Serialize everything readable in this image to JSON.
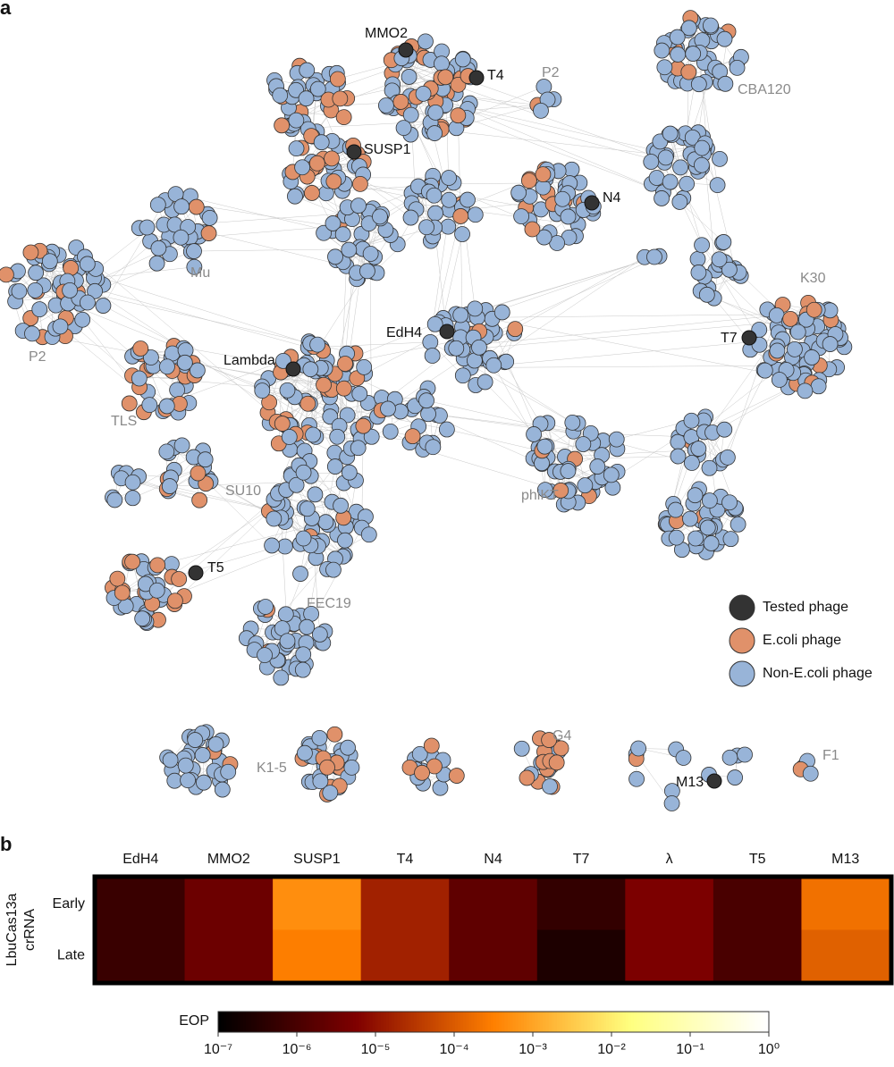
{
  "panel_labels": [
    "a",
    "b"
  ],
  "network": {
    "labels": [
      "MMO2",
      "T4",
      "P2",
      "SUSP1",
      "N4",
      "CBA120",
      "Mu",
      "K30",
      "P2",
      "EdH4",
      "T7",
      "Lambda",
      "TLS",
      "SU10",
      "phiKT",
      "T5",
      "FEC19",
      "K1-5",
      "G4",
      "M13",
      "F1"
    ],
    "legend": [
      {
        "label": "Tested phage",
        "color": "#333333"
      },
      {
        "label": "E.coli phage",
        "color": "#e0916a"
      },
      {
        "label": "Non-E.coli phage",
        "color": "#98b4d8"
      }
    ]
  },
  "chart_data": {
    "type": "heatmap",
    "x": [
      "EdH4",
      "MMO2",
      "SUSP1",
      "T4",
      "N4",
      "T7",
      "λ",
      "T5",
      "M13"
    ],
    "y": [
      "Early",
      "Late"
    ],
    "ylabel": [
      "LbuCas13a",
      "crRNA"
    ],
    "values": [
      [
        6e-07,
        3e-06,
        0.0005,
        1.6e-05,
        2e-06,
        5e-07,
        5e-06,
        1e-06,
        0.0002
      ],
      [
        6e-07,
        3e-06,
        0.0003,
        1.6e-05,
        2e-06,
        2.5e-07,
        5e-06,
        1e-06,
        0.00012
      ]
    ],
    "colorbar": {
      "label": "EOP",
      "log": true,
      "colormap": "afmhot",
      "lim": [
        1e-07,
        1
      ],
      "ticks": [
        {
          "value": 1e-07,
          "label": "10⁻⁷"
        },
        {
          "value": 1e-06,
          "label": "10⁻⁶"
        },
        {
          "value": 1e-05,
          "label": "10⁻⁵"
        },
        {
          "value": 0.0001,
          "label": "10⁻⁴"
        },
        {
          "value": 0.001,
          "label": "10⁻³"
        },
        {
          "value": 0.01,
          "label": "10⁻²"
        },
        {
          "value": 0.1,
          "label": "10⁻¹"
        },
        {
          "value": 1,
          "label": "10⁰"
        }
      ]
    }
  }
}
